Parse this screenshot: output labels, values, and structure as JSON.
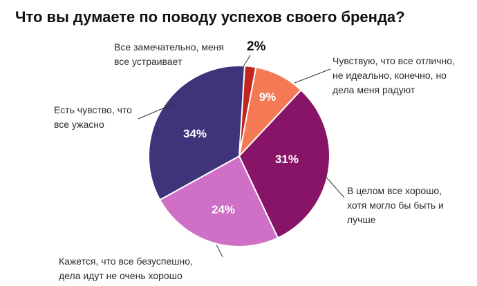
{
  "chart_data": {
    "type": "pie",
    "title": "Что вы думаете по поводу успехов своего бренда?",
    "slices": [
      {
        "label": "Все замечательно, меня все устраивает",
        "value": 2,
        "value_label": "2%",
        "color": "#c0261e"
      },
      {
        "label": "Чувствую, что все отлично, не идеально, конечно, но дела меня радуют",
        "value": 9,
        "value_label": "9%",
        "color": "#f47a56"
      },
      {
        "label": "В целом все хорошо, хотя могло бы быть и лучше",
        "value": 31,
        "value_label": "31%",
        "color": "#871466"
      },
      {
        "label": "Кажется, что все безуспешно, дела идут не очень хорошо",
        "value": 24,
        "value_label": "24%",
        "color": "#cf6fc6"
      },
      {
        "label": "Есть чувство, что все ужасно",
        "value": 34,
        "value_label": "34%",
        "color": "#3f3379"
      }
    ]
  },
  "labels": {
    "s0": "Все замечательно, меня\nвсе устраивает",
    "s1": "Чувствую, что все отлично,\nне идеально, конечно, но\nдела меня радуют",
    "s2": "В целом все хорошо,\nхотя могло бы быть и\nлучше",
    "s3": "Кажется, что все безуспешно,\nдела идут не очень хорошо",
    "s4": "Есть чувство, что\nвсе ужасно"
  },
  "colors": {
    "leader": "#333333",
    "background": "#ffffff"
  }
}
